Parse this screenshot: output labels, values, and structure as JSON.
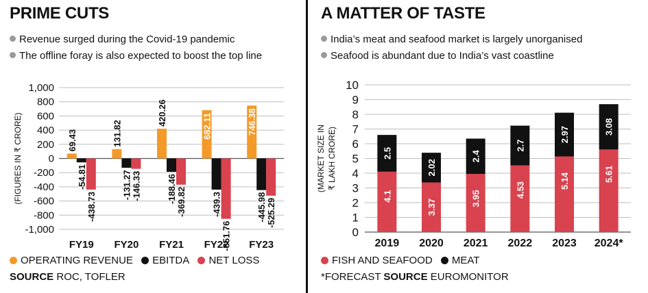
{
  "left": {
    "title": "PRIME CUTS",
    "bullets": [
      "Revenue surged during the Covid-19 pandemic",
      "The offline foray is also expected to boost the top line"
    ],
    "legend": [
      "OPERATING REVENUE",
      "EBITDA",
      "NET LOSS"
    ],
    "source_label": "SOURCE",
    "source_text": "ROC, TOFLER"
  },
  "right": {
    "title": "A MATTER OF TASTE",
    "bullets": [
      "India’s meat and seafood market is largely unorganised",
      "Seafood is abundant due to India’s vast coastline"
    ],
    "legend": [
      "FISH AND SEAFOOD",
      "MEAT"
    ],
    "source_prefix": "*FORECAST",
    "source_label": "SOURCE",
    "source_text": "EUROMONITOR"
  },
  "colors": {
    "revenue": "#f39a2b",
    "ebitda": "#111111",
    "netloss": "#d8434f",
    "fish": "#d8434f",
    "meat": "#111111",
    "grid": "#bdbdbd",
    "bullet": "#9a9a9a"
  },
  "chart_data": [
    {
      "type": "bar",
      "ylabel": "(FIGURES IN ₹ CRORE)",
      "categories": [
        "FY19",
        "FY20",
        "FY21",
        "FY22",
        "FY23"
      ],
      "ylim": [
        -1000,
        1000
      ],
      "yticks": [
        "1,000",
        "800",
        "600",
        "400",
        "200",
        "0",
        "-200",
        "-400",
        "-600",
        "-800",
        "-1,000"
      ],
      "grid": true,
      "legend_position": "bottom",
      "series": [
        {
          "name": "OPERATING REVENUE",
          "values": [
            69.43,
            131.82,
            420.26,
            682.11,
            746.38
          ],
          "labels": [
            "69.43",
            "131.82",
            "420.26",
            "682.11",
            "746.38"
          ]
        },
        {
          "name": "EBITDA",
          "values": [
            -54.81,
            -131.27,
            -188.46,
            -439.3,
            -445.98
          ],
          "labels": [
            "-54.81",
            "-131.27",
            "-188.46",
            "-439.3",
            "-445.98"
          ]
        },
        {
          "name": "NET LOSS",
          "values": [
            -438.73,
            -146.33,
            -369.82,
            -851.76,
            -525.29
          ],
          "labels": [
            "-438.73",
            "-146.33",
            "-369.82",
            "-851.76",
            "-525.29"
          ]
        }
      ]
    },
    {
      "type": "bar",
      "stacked": true,
      "ylabel": "(MARKET SIZE IN ₹ LAKH CRORE)",
      "categories": [
        "2019",
        "2020",
        "2021",
        "2022",
        "2023",
        "2024*"
      ],
      "ylim": [
        0,
        10
      ],
      "yticks": [
        "10",
        "9",
        "8",
        "7",
        "6",
        "5",
        "4",
        "3",
        "2",
        "1",
        "0"
      ],
      "grid": true,
      "legend_position": "bottom",
      "series": [
        {
          "name": "FISH AND SEAFOOD",
          "values": [
            4.1,
            3.37,
            3.95,
            4.53,
            5.14,
            5.61
          ],
          "labels": [
            "4.1",
            "3.37",
            "3.95",
            "4.53",
            "5.14",
            "5.61"
          ]
        },
        {
          "name": "MEAT",
          "values": [
            2.5,
            2.02,
            2.4,
            2.7,
            2.97,
            3.08
          ],
          "labels": [
            "2.5",
            "2.02",
            "2.4",
            "2.7",
            "2.97",
            "3.08"
          ]
        }
      ]
    }
  ]
}
